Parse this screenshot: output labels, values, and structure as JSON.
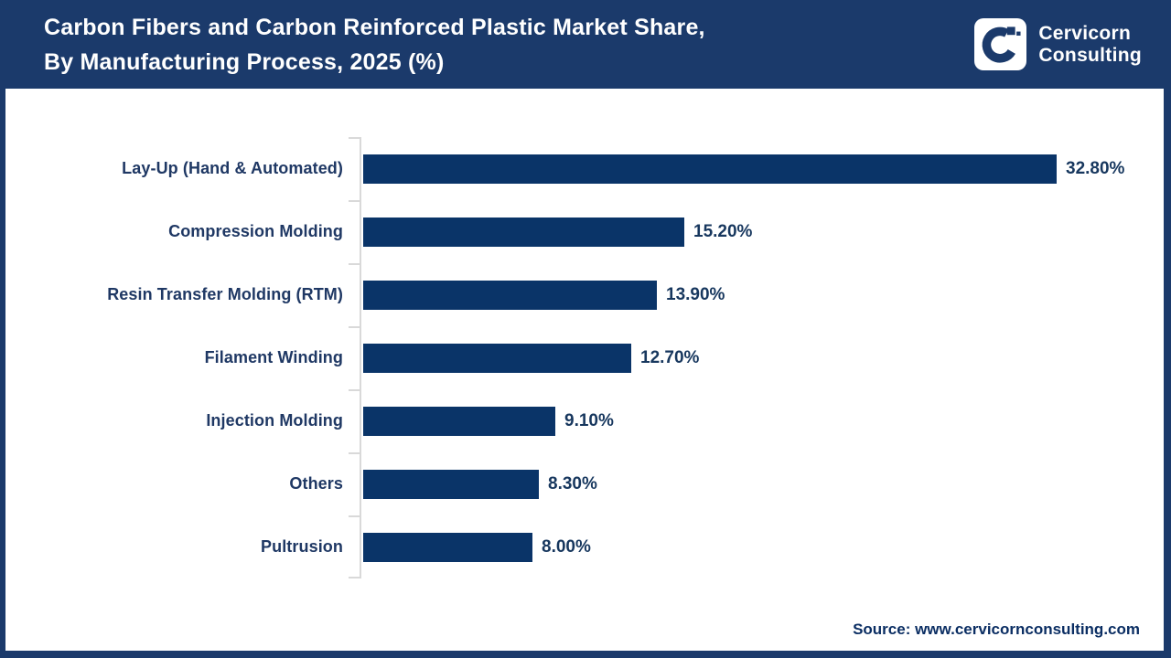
{
  "header": {
    "title_line1": "Carbon Fibers and Carbon Reinforced Plastic Market Share,",
    "title_line2": "By Manufacturing Process, 2025 (%)",
    "logo": {
      "icon": "cervicorn-c-logo",
      "brand_line1": "Cervicorn",
      "brand_line2": "Consulting"
    }
  },
  "chart_data": {
    "type": "bar",
    "orientation": "horizontal",
    "title": "Carbon Fibers and Carbon Reinforced Plastic Market Share, By Manufacturing Process, 2025 (%)",
    "categories": [
      "Lay-Up (Hand & Automated)",
      "Compression Molding",
      "Resin Transfer Molding (RTM)",
      "Filament Winding",
      "Injection Molding",
      "Others",
      "Pultrusion"
    ],
    "values": [
      32.8,
      15.2,
      13.9,
      12.7,
      9.1,
      8.3,
      8.0
    ],
    "value_labels": [
      "32.80%",
      "15.20%",
      "13.90%",
      "12.70%",
      "9.10%",
      "8.30%",
      "8.00%"
    ],
    "xlabel": "",
    "ylabel": "",
    "xlim": [
      0,
      34
    ],
    "grid": "off",
    "legend": "none",
    "bar_color": "#0A3468",
    "axis_line_color": "#D9D9D9"
  },
  "footer": {
    "source": "Source: www.cervicornconsulting.com"
  },
  "colors": {
    "header_navy": "#1B3A6B",
    "bar_navy": "#0A3468",
    "category_label_navy": "#1F3864",
    "value_label_navy": "#17375E",
    "axis_gray": "#D9D9D9",
    "source_navy": "#0B2E63",
    "background": "#FFFFFF"
  }
}
